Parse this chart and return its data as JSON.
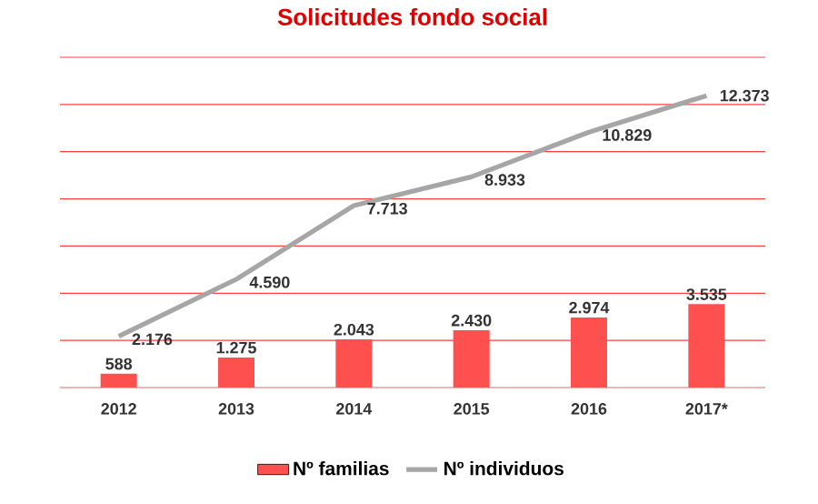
{
  "chart_data": {
    "type": "bar",
    "title": "Solicitudes fondo social",
    "categories": [
      "2012",
      "2013",
      "2014",
      "2015",
      "2016",
      "2017*"
    ],
    "series": [
      {
        "name": "Nº familias",
        "color": "#ff5050",
        "values": [
          588,
          1275,
          2043,
          2430,
          2974,
          3535
        ],
        "value_labels": [
          "588",
          "1.275",
          "2.043",
          "2.430",
          "2.974",
          "3.535"
        ]
      },
      {
        "name": "Nº individuos",
        "type": "line",
        "color": "#a6a6a6",
        "values": [
          2176,
          4590,
          7713,
          8933,
          10829,
          12373
        ],
        "value_labels": [
          "2.176",
          "4.590",
          "7.713",
          "8.933",
          "10.829",
          "12.373"
        ]
      }
    ],
    "ylim": [
      0,
      14000
    ],
    "yticks": [
      {
        "value": 0,
        "label": null
      },
      {
        "value": 2000,
        "label": null
      },
      {
        "value": 4000,
        "label": null
      },
      {
        "value": 6000,
        "label": null
      },
      {
        "value": 8000,
        "label": null
      },
      {
        "value": 10000,
        "label": null
      },
      {
        "value": 12000,
        "label": null
      },
      {
        "value": 14000,
        "label": null
      }
    ],
    "tick_labels": "x",
    "grid": "y",
    "legend": "bottom",
    "marker": "none",
    "line_style": "solid"
  }
}
